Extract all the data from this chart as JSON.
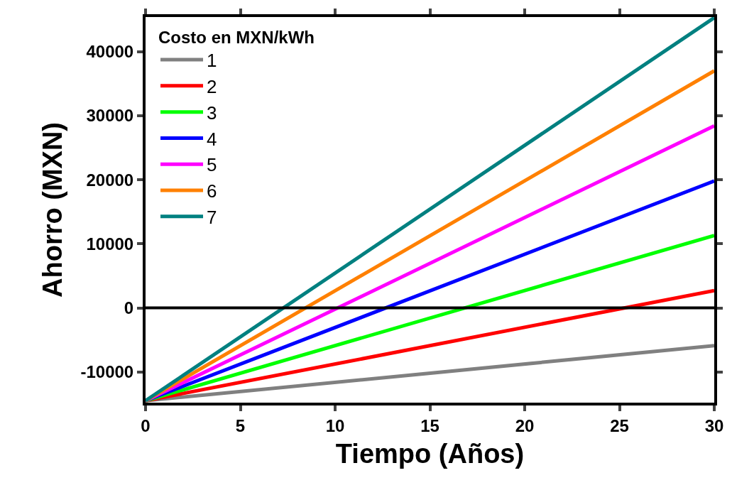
{
  "chart_data": {
    "type": "line",
    "xlabel": "Tiempo (Años)",
    "ylabel": "Ahorro (MXN)",
    "legend_title": "Costo en MXN/kWh",
    "x": [
      0,
      30
    ],
    "series": [
      {
        "name": "1",
        "color": "#808080",
        "values": [
          -14500,
          -5900
        ]
      },
      {
        "name": "2",
        "color": "#ff0000",
        "values": [
          -14500,
          2700
        ]
      },
      {
        "name": "3",
        "color": "#00ff00",
        "values": [
          -14500,
          11300
        ]
      },
      {
        "name": "4",
        "color": "#0000ff",
        "values": [
          -14500,
          19800
        ]
      },
      {
        "name": "5",
        "color": "#ff00ff",
        "values": [
          -14500,
          28400
        ]
      },
      {
        "name": "6",
        "color": "#ff8000",
        "values": [
          -14500,
          37000
        ]
      },
      {
        "name": "7",
        "color": "#008080",
        "values": [
          -14500,
          45300
        ]
      }
    ],
    "xlim": [
      0,
      30
    ],
    "xticks": [
      0,
      5,
      10,
      15,
      20,
      25,
      30
    ],
    "ylim": [
      -14800,
      45400
    ],
    "yticks": [
      -10000,
      0,
      10000,
      20000,
      30000,
      40000
    ],
    "ref_lines": [
      {
        "axis": "y",
        "value": 0,
        "color": "#000000",
        "line_style": "solid"
      }
    ],
    "legend": "top left",
    "marker": "none",
    "line_style": "solid"
  }
}
